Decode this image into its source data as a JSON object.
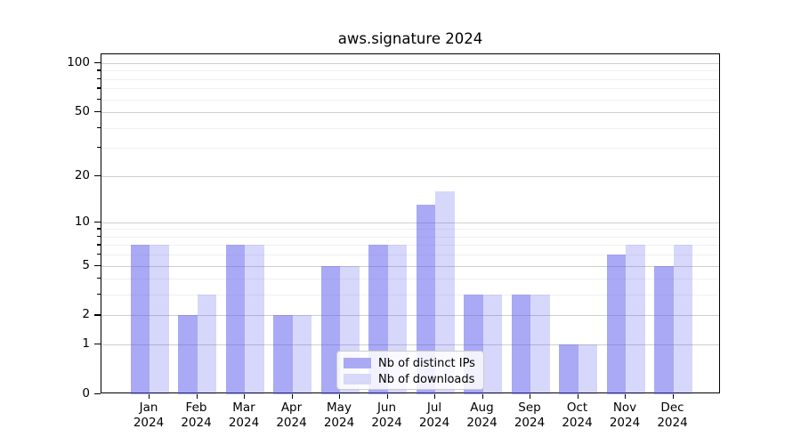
{
  "chart_data": {
    "type": "bar",
    "title": "aws.signature 2024",
    "xlabel": "",
    "ylabel": "",
    "year": "2024",
    "categories": [
      "Jan",
      "Feb",
      "Mar",
      "Apr",
      "May",
      "Jun",
      "Jul",
      "Aug",
      "Sep",
      "Oct",
      "Nov",
      "Dec"
    ],
    "series": [
      {
        "name": "Nb of distinct IPs",
        "values": [
          7,
          2,
          7,
          2,
          5,
          7,
          13,
          3,
          3,
          1,
          6,
          5
        ],
        "color": "rgba(83,83,236,0.50)",
        "legend_color": "#a9a9f5"
      },
      {
        "name": "Nb of downloads",
        "values": [
          7,
          3,
          7,
          2,
          5,
          7,
          16,
          3,
          3,
          1,
          7,
          7
        ],
        "color": "rgba(83,83,236,0.23)",
        "legend_color": "#d8d8f9"
      }
    ],
    "yscale": "log1p",
    "yticks": [
      0,
      1,
      2,
      5,
      10,
      20,
      50,
      100
    ],
    "minor_yticks": [
      3,
      4,
      6,
      7,
      8,
      9,
      30,
      40,
      60,
      70,
      80,
      90
    ],
    "ylim": [
      0,
      113
    ],
    "grid": true,
    "grid_color": "#cfcfcf",
    "minor_grid_color": "#f0f0f0",
    "legend_position": "lower center"
  }
}
